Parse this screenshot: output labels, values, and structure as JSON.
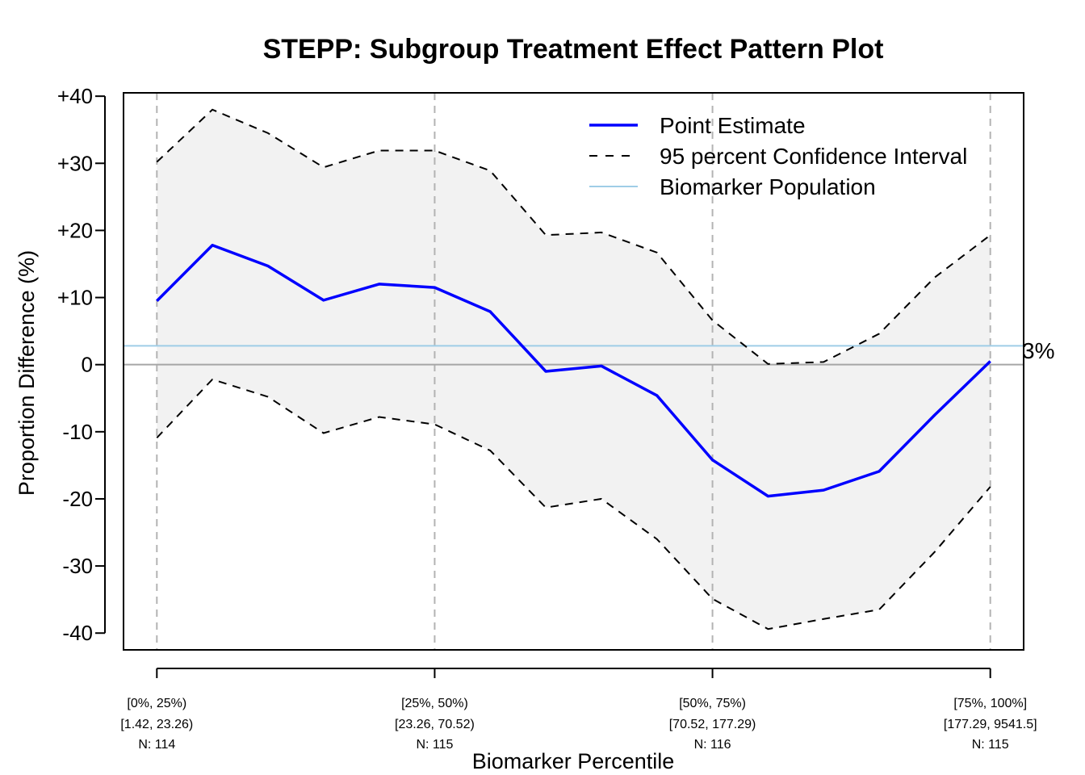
{
  "chart_data": {
    "type": "line",
    "title": "STEPP: Subgroup Treatment Effect Pattern Plot",
    "xlabel": "Biomarker Percentile",
    "ylabel": "Proportion Difference (%)",
    "ylim": [
      -42.5,
      40.5
    ],
    "y_ticks": [
      40,
      30,
      20,
      10,
      0,
      -10,
      -20,
      -30,
      -40
    ],
    "y_tick_labels": [
      "+40",
      "+30",
      "+20",
      "+10",
      "0",
      "-10",
      "-20",
      "-30",
      "-40"
    ],
    "x_positions": [
      0,
      0.2,
      0.4,
      0.6,
      0.8,
      1.0,
      1.2,
      1.4,
      1.6,
      1.8,
      2.0,
      2.2,
      2.4,
      2.6,
      2.8,
      3.0
    ],
    "xlim": [
      -0.12,
      3.12
    ],
    "x_categories": [
      {
        "pos": 0,
        "percentile": "[0%, 25%)",
        "range": "[1.42, 23.26)",
        "n": "N: 114"
      },
      {
        "pos": 1,
        "percentile": "[25%, 50%)",
        "range": "[23.26, 70.52)",
        "n": "N: 115"
      },
      {
        "pos": 2,
        "percentile": "[50%, 75%)",
        "range": "[70.52, 177.29)",
        "n": "N: 116"
      },
      {
        "pos": 3,
        "percentile": "[75%, 100%]",
        "range": "[177.29, 9541.5]",
        "n": "N: 115"
      }
    ],
    "series": [
      {
        "name": "Point Estimate",
        "color": "#0000ff",
        "style": "solid",
        "values": [
          9.5,
          17.8,
          14.7,
          9.6,
          12.0,
          11.5,
          7.9,
          -1.0,
          -0.2,
          -4.6,
          -14.2,
          -19.6,
          -18.7,
          -15.9,
          -7.5,
          0.5
        ]
      },
      {
        "name": "95 percent Confidence Interval",
        "color": "#000000",
        "style": "dashed",
        "upper": [
          30.2,
          38.0,
          34.5,
          29.4,
          31.9,
          31.9,
          28.9,
          19.3,
          19.7,
          16.7,
          6.6,
          0.1,
          0.4,
          4.6,
          13.0,
          19.3
        ],
        "lower": [
          -10.9,
          -2.2,
          -4.8,
          -10.2,
          -7.8,
          -8.9,
          -12.8,
          -21.3,
          -20.0,
          -26.0,
          -34.9,
          -39.4,
          -37.9,
          -36.5,
          -27.9,
          -18.2
        ]
      },
      {
        "name": "Biomarker Population",
        "color": "#9fcde7",
        "style": "solid",
        "value": 2.8
      }
    ],
    "reference_label": "3%",
    "band_color": "#f2f2f2",
    "zero_line_color": "#a6a6a6",
    "grid_color": "#b3b3b3",
    "legend_position": "top-right"
  }
}
